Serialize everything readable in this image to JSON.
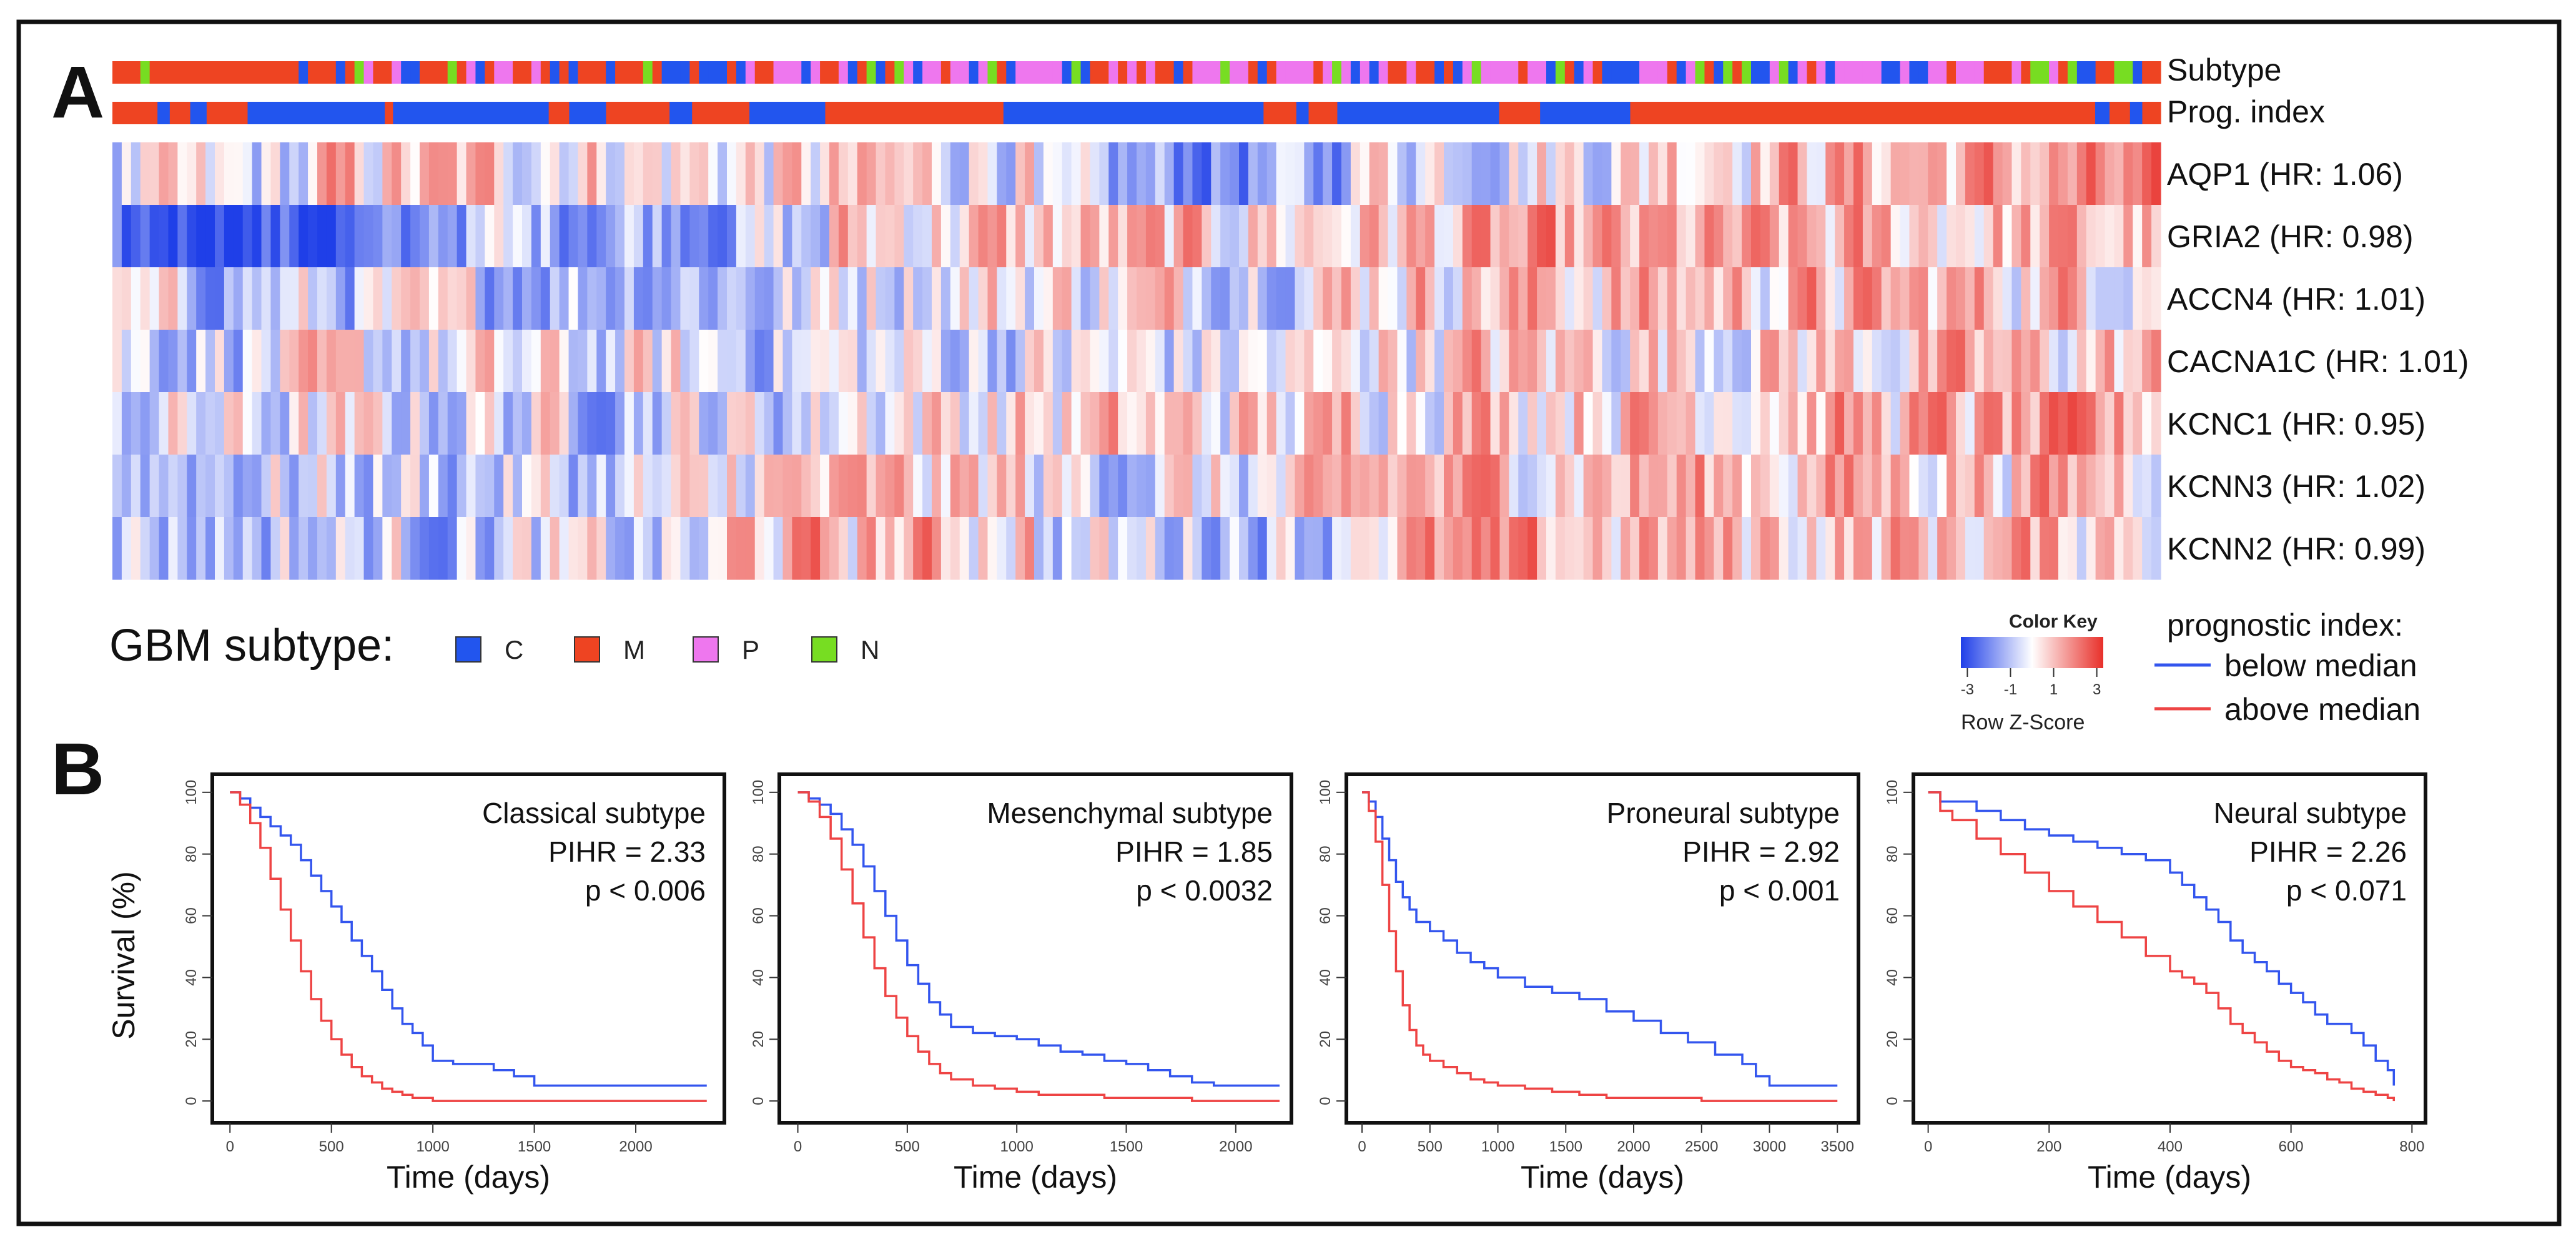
{
  "colors": {
    "classical": "#2255ee",
    "mesenchymal": "#ee4422",
    "proneural": "#ee77ee",
    "neural": "#77dd22",
    "below": "#3355ee",
    "above": "#ee4444",
    "heat_low": "#1f3fe8",
    "heat_mid": "#ffffff",
    "heat_high": "#e8302a"
  },
  "panel_a": {
    "label": "A",
    "annotation_rows": [
      "Subtype",
      "Prog. index"
    ],
    "genes": [
      "AQP1 (HR: 1.06)",
      "GRIA2 (HR: 0.98)",
      "ACCN4 (HR: 1.01)",
      "CACNA1C (HR: 1.01)",
      "KCNC1 (HR: 0.95)",
      "KCNN3 (HR: 1.02)",
      "KCNN2 (HR: 0.99)"
    ],
    "legend_title": "GBM subtype:",
    "subtype_legend": [
      {
        "key": "C",
        "color": "#2255ee"
      },
      {
        "key": "M",
        "color": "#ee4422"
      },
      {
        "key": "P",
        "color": "#ee77ee"
      },
      {
        "key": "N",
        "color": "#77dd22"
      }
    ],
    "color_key": {
      "title": "Color Key",
      "ticks": [
        "-3",
        "-1",
        "1",
        "3"
      ],
      "label": "Row Z-Score"
    },
    "prog_legend": {
      "title": "prognostic index:",
      "below": "below median",
      "above": "above median"
    },
    "prog_blocks": [
      {
        "from": 0,
        "to": 0.022,
        "v": "M"
      },
      {
        "from": 0.022,
        "to": 0.028,
        "v": "C"
      },
      {
        "from": 0.028,
        "to": 0.038,
        "v": "M"
      },
      {
        "from": 0.038,
        "to": 0.046,
        "v": "C"
      },
      {
        "from": 0.046,
        "to": 0.066,
        "v": "M"
      },
      {
        "from": 0.066,
        "to": 0.133,
        "v": "C"
      },
      {
        "from": 0.133,
        "to": 0.137,
        "v": "M"
      },
      {
        "from": 0.137,
        "to": 0.213,
        "v": "C"
      },
      {
        "from": 0.213,
        "to": 0.223,
        "v": "M"
      },
      {
        "from": 0.223,
        "to": 0.241,
        "v": "C"
      },
      {
        "from": 0.241,
        "to": 0.272,
        "v": "M"
      },
      {
        "from": 0.272,
        "to": 0.283,
        "v": "C"
      },
      {
        "from": 0.283,
        "to": 0.311,
        "v": "M"
      },
      {
        "from": 0.311,
        "to": 0.348,
        "v": "C"
      },
      {
        "from": 0.348,
        "to": 0.435,
        "v": "M"
      },
      {
        "from": 0.435,
        "to": 0.562,
        "v": "C"
      },
      {
        "from": 0.562,
        "to": 0.578,
        "v": "M"
      },
      {
        "from": 0.578,
        "to": 0.584,
        "v": "C"
      },
      {
        "from": 0.584,
        "to": 0.598,
        "v": "M"
      },
      {
        "from": 0.598,
        "to": 0.677,
        "v": "C"
      },
      {
        "from": 0.677,
        "to": 0.697,
        "v": "M"
      },
      {
        "from": 0.697,
        "to": 0.741,
        "v": "C"
      },
      {
        "from": 0.741,
        "to": 0.968,
        "v": "M"
      },
      {
        "from": 0.968,
        "to": 0.975,
        "v": "C"
      },
      {
        "from": 0.975,
        "to": 0.985,
        "v": "M"
      },
      {
        "from": 0.985,
        "to": 0.991,
        "v": "C"
      },
      {
        "from": 0.991,
        "to": 1.0,
        "v": "M"
      }
    ]
  },
  "panel_b": {
    "label": "B",
    "ylabel": "Survival (%)",
    "xlabel": "Time (days)"
  },
  "chart_data": [
    {
      "type": "line",
      "title": "Classical subtype",
      "stat1": "PIHR = 2.33",
      "stat2": "p < 0.006",
      "xlabel": "Time (days)",
      "ylabel": "Survival (%)",
      "xlim": [
        -50,
        2400
      ],
      "ylim": [
        -3,
        103
      ],
      "xticks": [
        0,
        500,
        1000,
        1500,
        2000
      ],
      "yticks": [
        0,
        20,
        40,
        60,
        80,
        100
      ],
      "series": [
        {
          "name": "below median",
          "color": "#3355ee",
          "x": [
            0,
            50,
            100,
            150,
            200,
            250,
            300,
            350,
            400,
            450,
            500,
            550,
            600,
            650,
            700,
            750,
            800,
            850,
            900,
            950,
            1000,
            1100,
            1200,
            1300,
            1400,
            1500,
            2000,
            2300,
            2350
          ],
          "y": [
            100,
            98,
            95,
            92,
            89,
            86,
            83,
            78,
            73,
            68,
            63,
            58,
            52,
            47,
            42,
            36,
            30,
            25,
            22,
            18,
            13,
            12,
            12,
            10,
            8,
            5,
            5,
            5,
            5
          ]
        },
        {
          "name": "above median",
          "color": "#ee4444",
          "x": [
            0,
            50,
            100,
            150,
            200,
            250,
            300,
            350,
            400,
            450,
            500,
            550,
            600,
            650,
            700,
            750,
            800,
            850,
            900,
            950,
            1000,
            1200,
            1500,
            2000,
            2350
          ],
          "y": [
            100,
            96,
            90,
            82,
            72,
            62,
            52,
            42,
            33,
            26,
            20,
            15,
            11,
            8,
            6,
            4,
            3,
            2,
            1,
            1,
            0,
            0,
            0,
            0,
            0
          ]
        }
      ]
    },
    {
      "type": "line",
      "title": "Mesenchymal subtype",
      "stat1": "PIHR = 1.85",
      "stat2": "p < 0.0032",
      "xlabel": "Time (days)",
      "ylabel": "Survival (%)",
      "xlim": [
        -50,
        2220
      ],
      "ylim": [
        -3,
        103
      ],
      "xticks": [
        0,
        500,
        1000,
        1500,
        2000
      ],
      "yticks": [
        0,
        20,
        40,
        60,
        80,
        100
      ],
      "series": [
        {
          "name": "below median",
          "color": "#3355ee",
          "x": [
            0,
            50,
            100,
            150,
            200,
            250,
            300,
            350,
            400,
            450,
            500,
            550,
            600,
            650,
            700,
            800,
            900,
            1000,
            1100,
            1200,
            1300,
            1400,
            1500,
            1600,
            1700,
            1800,
            1900,
            2000,
            2100,
            2200
          ],
          "y": [
            100,
            98,
            96,
            93,
            88,
            83,
            76,
            68,
            60,
            52,
            44,
            38,
            32,
            28,
            24,
            22,
            21,
            20,
            18,
            16,
            15,
            13,
            12,
            10,
            8,
            6,
            5,
            5,
            5,
            5
          ]
        },
        {
          "name": "above median",
          "color": "#ee4444",
          "x": [
            0,
            50,
            100,
            150,
            200,
            250,
            300,
            350,
            400,
            450,
            500,
            550,
            600,
            650,
            700,
            800,
            900,
            1000,
            1100,
            1200,
            1400,
            1600,
            1800,
            2000,
            2200
          ],
          "y": [
            100,
            97,
            92,
            85,
            75,
            64,
            53,
            43,
            34,
            27,
            21,
            16,
            12,
            9,
            7,
            5,
            4,
            3,
            2,
            2,
            1,
            1,
            0,
            0,
            0
          ]
        }
      ]
    },
    {
      "type": "line",
      "title": "Proneural subtype",
      "stat1": "PIHR = 2.92",
      "stat2": "p < 0.001",
      "xlabel": "Time (days)",
      "ylabel": "Survival (%)",
      "xlim": [
        -60,
        3600
      ],
      "ylim": [
        -3,
        103
      ],
      "xticks": [
        0,
        500,
        1000,
        1500,
        2000,
        2500,
        3000,
        3500
      ],
      "yticks": [
        0,
        20,
        40,
        60,
        80,
        100
      ],
      "series": [
        {
          "name": "below median",
          "color": "#3355ee",
          "x": [
            0,
            50,
            100,
            150,
            200,
            250,
            300,
            350,
            400,
            500,
            600,
            700,
            800,
            900,
            1000,
            1200,
            1400,
            1600,
            1800,
            2000,
            2200,
            2400,
            2600,
            2800,
            2900,
            3000,
            3200,
            3500
          ],
          "y": [
            100,
            97,
            92,
            85,
            78,
            71,
            66,
            62,
            58,
            55,
            52,
            48,
            45,
            43,
            40,
            37,
            35,
            33,
            29,
            26,
            22,
            19,
            15,
            12,
            8,
            5,
            5,
            5
          ]
        },
        {
          "name": "above median",
          "color": "#ee4444",
          "x": [
            0,
            50,
            100,
            150,
            200,
            250,
            300,
            350,
            400,
            450,
            500,
            600,
            700,
            800,
            900,
            1000,
            1200,
            1400,
            1600,
            1800,
            2000,
            2500,
            3000,
            3500
          ],
          "y": [
            100,
            94,
            84,
            70,
            55,
            42,
            31,
            23,
            18,
            15,
            13,
            11,
            9,
            7,
            6,
            5,
            4,
            3,
            2,
            1,
            1,
            0,
            0,
            0
          ]
        }
      ]
    },
    {
      "type": "line",
      "title": "Neural subtype",
      "stat1": "PIHR = 2.26",
      "stat2": "p < 0.071",
      "xlabel": "Time (days)",
      "ylabel": "Survival (%)",
      "xlim": [
        -12,
        810
      ],
      "ylim": [
        -3,
        103
      ],
      "xticks": [
        0,
        200,
        400,
        600,
        800
      ],
      "yticks": [
        0,
        20,
        40,
        60,
        80,
        100
      ],
      "series": [
        {
          "name": "below median",
          "color": "#3355ee",
          "x": [
            0,
            20,
            40,
            80,
            120,
            160,
            200,
            240,
            280,
            320,
            360,
            400,
            420,
            440,
            460,
            480,
            500,
            520,
            540,
            560,
            580,
            600,
            620,
            640,
            660,
            680,
            700,
            720,
            740,
            760,
            770
          ],
          "y": [
            100,
            97,
            97,
            94,
            91,
            88,
            86,
            84,
            82,
            80,
            78,
            74,
            70,
            66,
            62,
            58,
            52,
            48,
            45,
            42,
            38,
            35,
            32,
            28,
            25,
            25,
            22,
            18,
            13,
            10,
            5
          ]
        },
        {
          "name": "above median",
          "color": "#ee4444",
          "x": [
            0,
            20,
            40,
            80,
            120,
            160,
            200,
            240,
            280,
            320,
            360,
            400,
            420,
            440,
            460,
            480,
            500,
            520,
            540,
            560,
            580,
            600,
            620,
            640,
            660,
            680,
            700,
            720,
            740,
            760,
            770
          ],
          "y": [
            100,
            94,
            91,
            85,
            80,
            74,
            68,
            63,
            58,
            53,
            47,
            42,
            40,
            38,
            35,
            30,
            25,
            22,
            19,
            16,
            13,
            11,
            10,
            9,
            7,
            6,
            4,
            3,
            2,
            1,
            0
          ]
        }
      ]
    }
  ]
}
